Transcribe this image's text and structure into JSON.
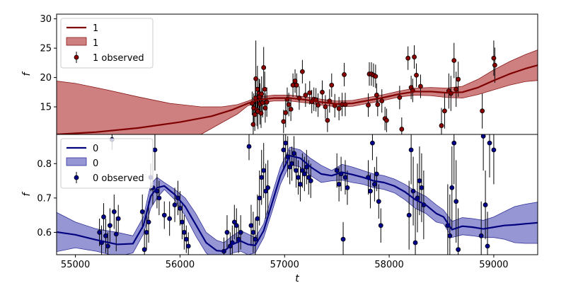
{
  "chart_data": [
    {
      "type": "line",
      "panel": "top",
      "xlabel": "",
      "ylabel": "f",
      "xlim": [
        54820,
        59420
      ],
      "ylim": [
        10.3,
        30.8
      ],
      "yticks": [
        15,
        20,
        25,
        30
      ],
      "grid": false,
      "legend_position": "top-left",
      "legend": [
        "1",
        "1",
        "1 observed"
      ],
      "colors": {
        "line": "#7f0000",
        "band": "#b03030",
        "band_edge": "#8b1a1a",
        "points": "#8b0000"
      },
      "series": [
        {
          "name": "1",
          "kind": "mean",
          "x": [
            54820,
            55200,
            55600,
            56000,
            56300,
            56500,
            56650,
            56750,
            56900,
            57050,
            57200,
            57350,
            57500,
            57650,
            57800,
            57950,
            58100,
            58250,
            58400,
            58550,
            58700,
            58850,
            59000,
            59150,
            59300,
            59420
          ],
          "y": [
            10.3,
            10.7,
            11.4,
            12.4,
            13.4,
            14.5,
            15.6,
            16.2,
            16.5,
            16.5,
            16.2,
            15.8,
            15.5,
            15.6,
            16.1,
            16.6,
            17.2,
            17.6,
            17.6,
            17.4,
            17.5,
            18.3,
            19.5,
            20.6,
            21.5,
            22.1
          ]
        },
        {
          "name": "1",
          "kind": "band",
          "x": [
            54820,
            55000,
            55300,
            55600,
            55900,
            56200,
            56400,
            56550,
            56650,
            56750,
            56900,
            57050,
            57200,
            57350,
            57500,
            57650,
            57800,
            57950,
            58100,
            58250,
            58400,
            58550,
            58700,
            58850,
            59000,
            59150,
            59300,
            59420
          ],
          "upper": [
            19.4,
            19.0,
            17.9,
            16.7,
            15.6,
            15.0,
            15.0,
            15.4,
            16.0,
            16.7,
            17.0,
            17.0,
            16.7,
            16.3,
            16.0,
            16.1,
            16.6,
            17.1,
            17.7,
            18.2,
            18.3,
            18.2,
            18.5,
            19.7,
            21.3,
            22.7,
            23.9,
            24.7
          ],
          "lower": [
            1.2,
            2.4,
            5.0,
            7.2,
            8.8,
            10.3,
            12.3,
            13.8,
            15.2,
            15.7,
            16.0,
            16.0,
            15.7,
            15.3,
            15.0,
            15.1,
            15.6,
            16.1,
            16.7,
            17.0,
            16.9,
            16.6,
            16.5,
            17.1,
            17.9,
            18.7,
            19.3,
            19.5
          ]
        },
        {
          "name": "1 observed",
          "kind": "observed",
          "x": [
            56690,
            56700,
            56705,
            56715,
            56720,
            56725,
            56735,
            56740,
            56745,
            56755,
            56760,
            56765,
            56775,
            56780,
            56790,
            56800,
            56810,
            56815,
            56830,
            56990,
            57010,
            57025,
            57040,
            57060,
            57080,
            57100,
            57115,
            57140,
            57170,
            57200,
            57240,
            57260,
            57280,
            57300,
            57320,
            57360,
            57390,
            57410,
            57430,
            57450,
            57480,
            57520,
            57550,
            57570,
            57580,
            57800,
            57810,
            57830,
            57850,
            57870,
            57880,
            57890,
            57930,
            57960,
            57975,
            58100,
            58120,
            58180,
            58210,
            58225,
            58240,
            58260,
            58300,
            58500,
            58530,
            58570,
            58590,
            58620,
            58640,
            58660,
            58890,
            59000,
            59010
          ],
          "y": [
            15.6,
            12.0,
            14.8,
            13.7,
            16.5,
            19.8,
            14.5,
            18.0,
            14.2,
            17.3,
            16.7,
            15.5,
            13.9,
            17.2,
            15.7,
            21.7,
            18.0,
            14.8,
            15.8,
            12.5,
            14.0,
            16.3,
            15.4,
            14.6,
            18.7,
            19.4,
            18.7,
            16.5,
            21.0,
            17.0,
            17.4,
            15.9,
            16.3,
            16.2,
            15.3,
            17.5,
            15.0,
            12.7,
            16.0,
            18.7,
            15.2,
            14.7,
            15.4,
            20.5,
            15.4,
            15.3,
            20.6,
            20.6,
            20.4,
            20.2,
            17.0,
            15.4,
            16.0,
            13.0,
            12.7,
            16.6,
            11.2,
            23.3,
            18.3,
            17.8,
            23.5,
            20.4,
            18.5,
            11.8,
            14.3,
            17.7,
            17.3,
            22.9,
            18.0,
            19.7,
            14.3,
            23.3,
            22.1
          ],
          "err": [
            2.0,
            3.5,
            2.5,
            2.8,
            3.0,
            6.5,
            2.8,
            4.0,
            3.0,
            2.5,
            3.0,
            3.5,
            2.5,
            3.0,
            2.5,
            3.5,
            3.0,
            2.5,
            2.5,
            2.0,
            2.5,
            2.0,
            2.0,
            2.0,
            2.0,
            2.0,
            2.0,
            2.0,
            2.0,
            2.0,
            2.0,
            2.0,
            2.0,
            2.0,
            2.0,
            2.0,
            2.0,
            2.0,
            2.0,
            2.0,
            2.0,
            2.0,
            2.0,
            2.0,
            2.0,
            2.0,
            2.0,
            2.0,
            2.0,
            2.0,
            2.0,
            2.0,
            2.0,
            2.0,
            2.0,
            2.0,
            2.0,
            2.0,
            2.0,
            2.0,
            2.0,
            2.0,
            2.0,
            3.0,
            3.0,
            3.0,
            3.0,
            3.0,
            3.0,
            3.0,
            3.0,
            3.0,
            3.0
          ]
        }
      ]
    },
    {
      "type": "line",
      "panel": "bottom",
      "xlabel": "t",
      "ylabel": "f",
      "xlim": [
        54820,
        59420
      ],
      "ylim": [
        0.535,
        0.885
      ],
      "yticks": [
        0.6,
        0.7,
        0.8
      ],
      "xticks": [
        55000,
        56000,
        57000,
        58000,
        59000
      ],
      "grid": false,
      "legend_position": "top-left",
      "legend": [
        "0",
        "0",
        "0 observed"
      ],
      "colors": {
        "line": "#00007f",
        "band": "#5555bb",
        "band_edge": "#33339a",
        "points": "#00008b"
      },
      "series": [
        {
          "name": "0",
          "kind": "mean",
          "x": [
            54820,
            55000,
            55200,
            55400,
            55550,
            55650,
            55720,
            55780,
            55850,
            55950,
            56050,
            56150,
            56250,
            56350,
            56420,
            56500,
            56580,
            56650,
            56720,
            56800,
            56880,
            56960,
            57050,
            57150,
            57250,
            57350,
            57450,
            57550,
            57650,
            57750,
            57850,
            57950,
            58050,
            58150,
            58250,
            58350,
            58450,
            58520,
            58600,
            58700,
            58800,
            58900,
            59000,
            59100,
            59200,
            59300,
            59420
          ],
          "y": [
            0.601,
            0.593,
            0.578,
            0.565,
            0.567,
            0.62,
            0.705,
            0.73,
            0.735,
            0.71,
            0.675,
            0.623,
            0.57,
            0.547,
            0.545,
            0.565,
            0.575,
            0.565,
            0.562,
            0.605,
            0.685,
            0.765,
            0.823,
            0.816,
            0.79,
            0.77,
            0.765,
            0.775,
            0.768,
            0.76,
            0.75,
            0.745,
            0.735,
            0.718,
            0.695,
            0.68,
            0.655,
            0.645,
            0.608,
            0.618,
            0.615,
            0.61,
            0.615,
            0.62,
            0.622,
            0.625,
            0.628
          ]
        },
        {
          "name": "0",
          "kind": "band",
          "x": [
            54820,
            55000,
            55200,
            55400,
            55550,
            55650,
            55720,
            55780,
            55850,
            55950,
            56050,
            56150,
            56250,
            56350,
            56420,
            56500,
            56580,
            56650,
            56720,
            56800,
            56880,
            56960,
            57050,
            57150,
            57250,
            57350,
            57450,
            57550,
            57650,
            57750,
            57850,
            57950,
            58050,
            58150,
            58250,
            58350,
            58450,
            58520,
            58600,
            58700,
            58800,
            58900,
            59000,
            59100,
            59200,
            59300,
            59420
          ],
          "upper": [
            0.658,
            0.63,
            0.61,
            0.6,
            0.59,
            0.645,
            0.74,
            0.76,
            0.745,
            0.725,
            0.7,
            0.655,
            0.6,
            0.577,
            0.57,
            0.59,
            0.605,
            0.595,
            0.585,
            0.625,
            0.71,
            0.79,
            0.848,
            0.84,
            0.815,
            0.795,
            0.78,
            0.798,
            0.79,
            0.78,
            0.77,
            0.765,
            0.755,
            0.74,
            0.72,
            0.705,
            0.68,
            0.665,
            0.632,
            0.643,
            0.64,
            0.635,
            0.645,
            0.66,
            0.675,
            0.682,
            0.688
          ],
          "lower": [
            0.544,
            0.555,
            0.545,
            0.53,
            0.54,
            0.595,
            0.67,
            0.7,
            0.725,
            0.695,
            0.648,
            0.59,
            0.54,
            0.517,
            0.52,
            0.54,
            0.545,
            0.535,
            0.54,
            0.585,
            0.66,
            0.74,
            0.798,
            0.79,
            0.765,
            0.745,
            0.75,
            0.752,
            0.745,
            0.74,
            0.73,
            0.725,
            0.715,
            0.695,
            0.67,
            0.655,
            0.63,
            0.625,
            0.585,
            0.593,
            0.59,
            0.585,
            0.585,
            0.58,
            0.57,
            0.568,
            0.568
          ]
        },
        {
          "name": "0 observed",
          "kind": "observed",
          "x": [
            55230,
            55250,
            55270,
            55290,
            55310,
            55330,
            55350,
            55370,
            55390,
            55410,
            55640,
            55660,
            55680,
            55700,
            55720,
            55740,
            55760,
            55780,
            55800,
            55850,
            55900,
            55950,
            55980,
            56000,
            56020,
            56040,
            56060,
            56080,
            56420,
            56450,
            56480,
            56500,
            56520,
            56540,
            56560,
            56580,
            56660,
            56680,
            56700,
            56720,
            56740,
            56760,
            56780,
            56800,
            56820,
            56840,
            56990,
            57010,
            57030,
            57050,
            57070,
            57090,
            57110,
            57130,
            57150,
            57170,
            57190,
            57210,
            57230,
            57250,
            57500,
            57520,
            57540,
            57560,
            57580,
            57600,
            57800,
            57820,
            57840,
            57860,
            57880,
            57900,
            57920,
            58190,
            58210,
            58230,
            58250,
            58270,
            58290,
            58310,
            58330,
            58560,
            58580,
            58600,
            58620,
            58640,
            58660,
            58880,
            58900,
            58920,
            58940,
            58960,
            59000
          ],
          "y": [
            0.6,
            0.57,
            0.645,
            0.59,
            0.56,
            0.62,
            0.87,
            0.66,
            0.595,
            0.64,
            0.66,
            0.55,
            0.6,
            0.63,
            0.76,
            0.73,
            0.84,
            0.72,
            0.7,
            0.65,
            0.64,
            0.68,
            0.7,
            0.67,
            0.63,
            0.6,
            0.58,
            0.56,
            0.545,
            0.6,
            0.56,
            0.57,
            0.63,
            0.62,
            0.58,
            0.6,
            0.85,
            0.62,
            0.6,
            0.58,
            0.64,
            0.7,
            0.76,
            0.78,
            0.72,
            0.73,
            0.84,
            0.86,
            0.82,
            0.79,
            0.8,
            0.83,
            0.78,
            0.76,
            0.74,
            0.78,
            0.77,
            0.79,
            0.76,
            0.75,
            0.78,
            0.74,
            0.77,
            0.58,
            0.76,
            0.73,
            0.76,
            0.72,
            0.86,
            0.74,
            0.77,
            0.69,
            0.62,
            0.65,
            0.84,
            0.72,
            0.57,
            0.7,
            0.75,
            0.73,
            0.68,
            0.62,
            0.59,
            0.73,
            0.86,
            0.69,
            0.55,
            0.59,
            0.88,
            0.68,
            0.56,
            0.86,
            0.84
          ],
          "err": [
            0.04,
            0.05,
            0.04,
            0.05,
            0.04,
            0.05,
            0.03,
            0.05,
            0.05,
            0.04,
            0.05,
            0.06,
            0.05,
            0.06,
            0.04,
            0.05,
            0.06,
            0.05,
            0.05,
            0.04,
            0.05,
            0.05,
            0.05,
            0.05,
            0.05,
            0.05,
            0.04,
            0.04,
            0.04,
            0.05,
            0.04,
            0.05,
            0.05,
            0.05,
            0.04,
            0.05,
            0.04,
            0.06,
            0.06,
            0.06,
            0.07,
            0.08,
            0.08,
            0.08,
            0.08,
            0.08,
            0.06,
            0.06,
            0.06,
            0.05,
            0.05,
            0.05,
            0.05,
            0.05,
            0.05,
            0.05,
            0.05,
            0.05,
            0.05,
            0.05,
            0.05,
            0.05,
            0.05,
            0.05,
            0.05,
            0.05,
            0.05,
            0.05,
            0.05,
            0.05,
            0.05,
            0.05,
            0.05,
            0.1,
            0.1,
            0.1,
            0.1,
            0.1,
            0.1,
            0.1,
            0.1,
            0.12,
            0.12,
            0.12,
            0.12,
            0.12,
            0.12,
            0.1,
            0.1,
            0.1,
            0.1,
            0.1,
            0.1
          ]
        }
      ]
    }
  ]
}
